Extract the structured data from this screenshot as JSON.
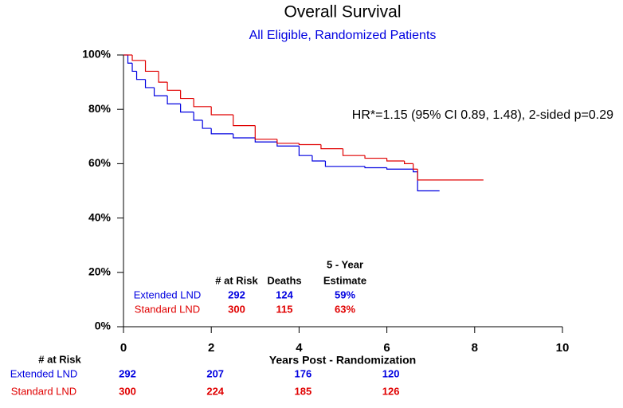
{
  "chart_data": {
    "type": "line",
    "step": true,
    "title": "Overall Survival",
    "subtitle": "All Eligible, Randomized Patients",
    "annotation": "HR*=1.15 (95% CI 0.89, 1.48), 2-sided p=0.29",
    "xlabel": "Years Post - Randomization",
    "xlim": [
      0,
      10
    ],
    "xticks": [
      0,
      2,
      4,
      6,
      8,
      10
    ],
    "ylim": [
      0,
      100
    ],
    "yticks": [
      {
        "value": 0,
        "label": "0%"
      },
      {
        "value": 20,
        "label": "20%"
      },
      {
        "value": 40,
        "label": "40%"
      },
      {
        "value": 60,
        "label": "60%"
      },
      {
        "value": 80,
        "label": "80%"
      },
      {
        "value": 100,
        "label": "100%"
      }
    ],
    "grid": false,
    "series": [
      {
        "name": "Extended LND",
        "color": "#0000e0",
        "x": [
          0,
          0.1,
          0.2,
          0.3,
          0.5,
          0.7,
          1.0,
          1.3,
          1.6,
          1.8,
          2.0,
          2.5,
          3.0,
          3.5,
          4.0,
          4.3,
          4.6,
          5.5,
          6.0,
          6.6,
          6.7,
          7.2
        ],
        "values": [
          100,
          97,
          94,
          91,
          88,
          85,
          82,
          79,
          76,
          73,
          71,
          69.5,
          68,
          66.5,
          63,
          61,
          59,
          58.5,
          58,
          57,
          50,
          50
        ]
      },
      {
        "name": "Standard LND",
        "color": "#e00000",
        "x": [
          0,
          0.2,
          0.5,
          0.8,
          1.0,
          1.3,
          1.6,
          2.0,
          2.5,
          3.0,
          3.5,
          4.0,
          4.5,
          5.0,
          5.5,
          6.0,
          6.4,
          6.6,
          6.7,
          8.2
        ],
        "values": [
          100,
          98,
          94,
          90,
          87,
          84,
          81,
          78,
          74,
          69,
          67.5,
          67,
          65.5,
          63,
          62,
          61,
          60,
          58,
          54,
          54
        ]
      }
    ],
    "summary": {
      "headers": [
        "# at Risk",
        "Deaths",
        [
          "5 - Year",
          "Estimate"
        ]
      ],
      "rows": [
        [
          292,
          124,
          "59%"
        ],
        [
          300,
          115,
          "63%"
        ]
      ]
    },
    "risk_table": {
      "title": "# at Risk",
      "rows": [
        [
          292,
          207,
          176,
          120
        ],
        [
          300,
          224,
          185,
          126
        ]
      ]
    }
  }
}
